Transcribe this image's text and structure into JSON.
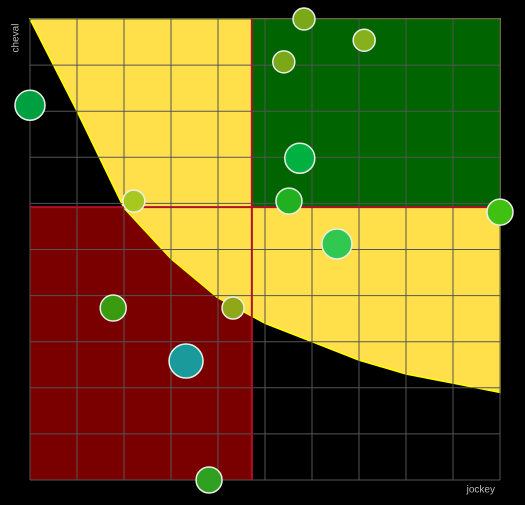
{
  "chart_data": {
    "type": "bubble",
    "x_label": "jockey",
    "y_label": "cheval",
    "xlim": [
      0,
      10
    ],
    "ylim": [
      0,
      10
    ],
    "xticks": [
      0,
      1,
      2,
      3,
      4,
      5,
      6,
      7,
      8,
      9,
      10
    ],
    "yticks": [
      0,
      1,
      2,
      3,
      4,
      5,
      6,
      7,
      8,
      9,
      10
    ],
    "grid": true,
    "grid_color": "#555",
    "quadrants": {
      "x": 4.72,
      "y": 5.92,
      "low_color": "#7a0000",
      "high_color": "#006400",
      "line_color": "#b0102a"
    },
    "curve": {
      "color": "#ffe04a",
      "edge_color": "#ffff00",
      "x": [
        0,
        1,
        2,
        3,
        4,
        5,
        6,
        7,
        8,
        9,
        10
      ],
      "y": [
        10,
        8.0,
        5.9,
        4.8,
        3.95,
        3.4,
        3.0,
        2.6,
        2.3,
        2.1,
        1.9
      ]
    },
    "points": {
      "x": [
        5.83,
        7.11,
        5.4,
        0,
        5.74,
        2.21,
        5.51,
        10,
        6.53,
        1.77,
        4.32,
        3.32,
        3.81
      ],
      "y": [
        10,
        9.54,
        9.07,
        8.13,
        6.98,
        6.05,
        6.05,
        5.81,
        5.12,
        3.73,
        3.73,
        2.58,
        0
      ],
      "sizes": [
        11,
        11,
        11,
        15,
        15,
        11,
        13,
        13,
        15,
        13,
        11,
        17,
        13
      ],
      "colors": [
        "#7aa818",
        "#86b01c",
        "#7aa818",
        "#00a040",
        "#00b040",
        "#a8c820",
        "#20b020",
        "#40c010",
        "#30c850",
        "#3a9a10",
        "#90a818",
        "#1a9a9a",
        "#30a020"
      ],
      "edge_color": "#e8f0e8"
    }
  }
}
